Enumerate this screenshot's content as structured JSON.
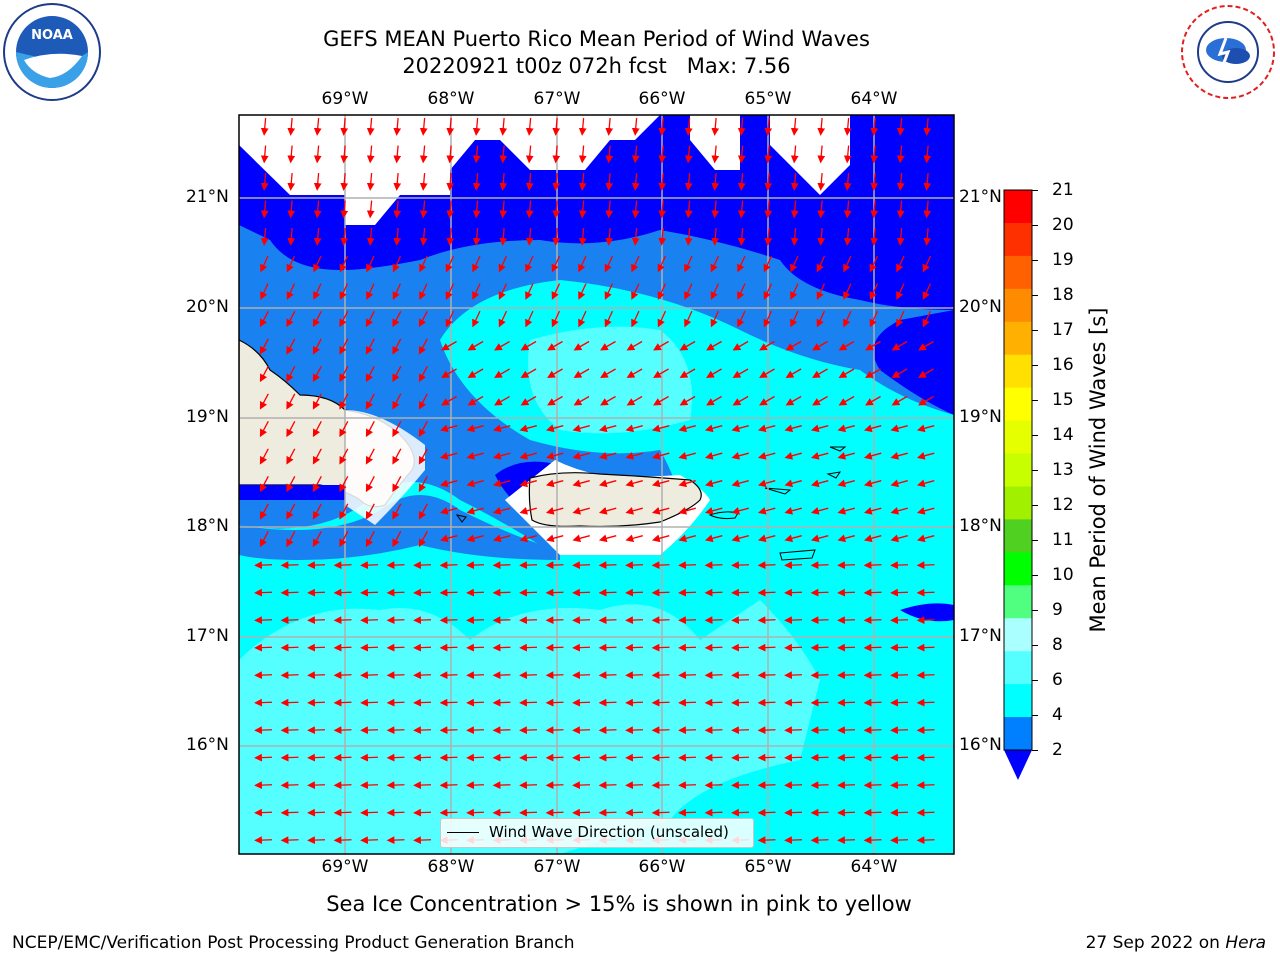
{
  "title": {
    "line1": "GEFS MEAN Puerto Rico Mean Period of Wind Waves",
    "line2": "20220921 t00z 072h fcst   Max: 7.56"
  },
  "logos": {
    "left": "NOAA",
    "right": "NATIONAL WEATHER SERVICE"
  },
  "map": {
    "lon_labels": [
      "69°W",
      "68°W",
      "67°W",
      "66°W",
      "65°W",
      "64°W"
    ],
    "lat_labels": [
      "21°N",
      "20°N",
      "19°N",
      "18°N",
      "17°N",
      "16°N"
    ],
    "legend": "Wind Wave Direction (unscaled)"
  },
  "colorbar": {
    "label": "Mean Period of Wind Waves [s]",
    "ticks": [
      "21",
      "20",
      "19",
      "18",
      "17",
      "16",
      "15",
      "14",
      "13",
      "12",
      "11",
      "10",
      "9",
      "8",
      "6",
      "4",
      "2"
    ],
    "colors": [
      "#ff0000",
      "#ff3000",
      "#ff6000",
      "#ff8c00",
      "#ffb000",
      "#ffe000",
      "#ffff00",
      "#e6ff00",
      "#c8ff00",
      "#a0f000",
      "#50d020",
      "#00ff00",
      "#50ff80",
      "#aaffff",
      "#55ffff",
      "#00ffff",
      "#0080ff"
    ],
    "under_color": "#0000ff"
  },
  "footer": {
    "ice_note": "Sea Ice Concentration > 15% is shown in pink to yellow",
    "branch": "NCEP/EMC/Verification Post Processing Product Generation Branch",
    "date_text": "27 Sep 2022 on ",
    "host": "Hera"
  }
}
